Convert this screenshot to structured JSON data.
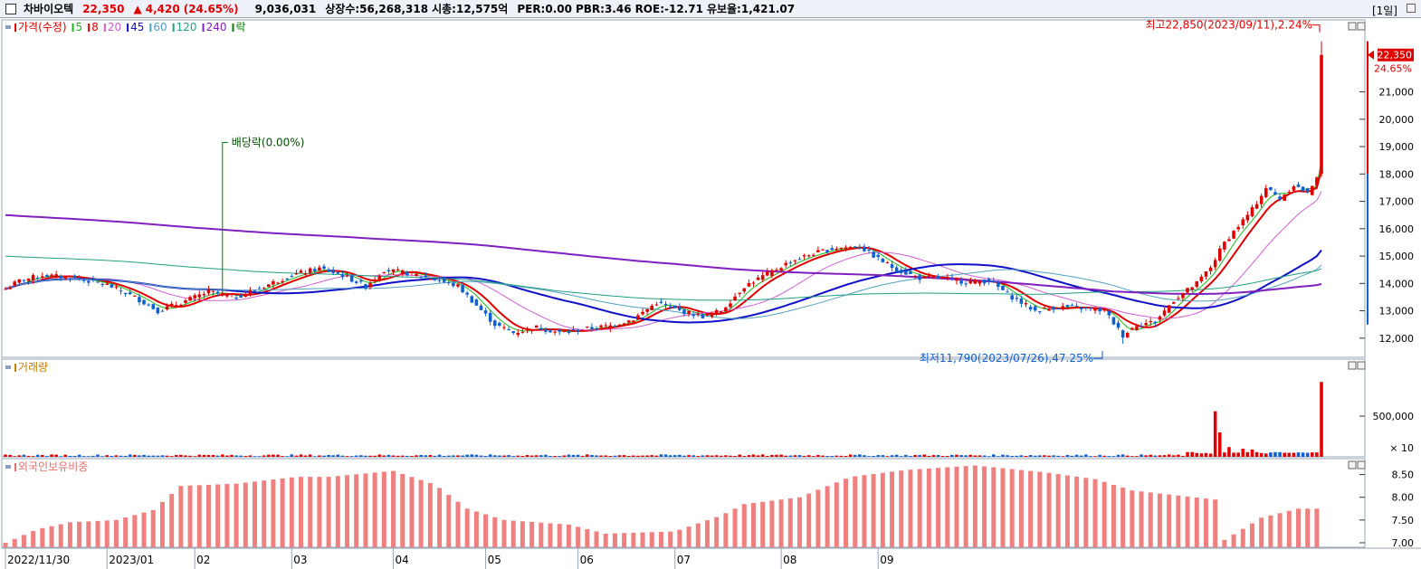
{
  "header": {
    "stock_name": "차바이오텍",
    "price": "22,350",
    "change_arrow": "▲",
    "change": "4,420",
    "change_pct": "(24.65%)",
    "volume": "9,036,031",
    "listed": "상장수:56,268,318",
    "mktcap": "시총:12,575억",
    "per": "PER:0.00",
    "pbr": "PBR:3.46",
    "roe": "ROE:-12.71",
    "float": "유보율:1,421.07",
    "period": "[1일]",
    "colors": {
      "up": "#e00000",
      "down": "#1060d0",
      "name": "#000000"
    }
  },
  "legend": {
    "main_items": [
      {
        "text": "가격(수정)",
        "color": "#e00000"
      },
      {
        "text": "5",
        "color": "#18b818"
      },
      {
        "text": "8",
        "color": "#e00000"
      },
      {
        "text": "20",
        "color": "#d060d0"
      },
      {
        "text": "45",
        "color": "#1010c8"
      },
      {
        "text": "60",
        "color": "#50a0c0"
      },
      {
        "text": "120",
        "color": "#20a080"
      },
      {
        "text": "240",
        "color": "#8020c0"
      },
      {
        "text": "락",
        "color": "#008000"
      }
    ],
    "volume": "거래량",
    "foreign": "외국인보유비중"
  },
  "annotations": {
    "high": "최고22,850(2023/09/11),2.24%",
    "low": "최저11,790(2023/07/26),47.25%",
    "dividend": "배당락(0.00%)",
    "current_price": "22,350",
    "current_pct": "24.65%",
    "volume_unit": "× 10"
  },
  "chart_data": {
    "type": "candlestick",
    "x_labels": [
      "2022/11/30",
      "2023/01",
      "02",
      "03",
      "04",
      "05",
      "06",
      "07",
      "08",
      "09"
    ],
    "price_axis": {
      "ticks": [
        12000,
        13000,
        14000,
        15000,
        16000,
        17000,
        18000,
        19000,
        20000,
        21000
      ],
      "ylim": [
        11300,
        23300
      ]
    },
    "volume_axis": {
      "ticks": [
        500000
      ],
      "unit": "× 10"
    },
    "foreign_axis": {
      "ticks": [
        7.0,
        7.5,
        8.0,
        8.5
      ],
      "ylim": [
        6.9,
        8.85
      ]
    },
    "anchors": [
      [
        0,
        13800
      ],
      [
        3,
        14100
      ],
      [
        8,
        14300
      ],
      [
        15,
        14200
      ],
      [
        22,
        13950
      ],
      [
        28,
        13500
      ],
      [
        33,
        13000
      ],
      [
        38,
        13300
      ],
      [
        44,
        13700
      ],
      [
        50,
        13500
      ],
      [
        56,
        13900
      ],
      [
        62,
        14300
      ],
      [
        68,
        14550
      ],
      [
        73,
        14300
      ],
      [
        78,
        13900
      ],
      [
        82,
        14500
      ],
      [
        88,
        14350
      ],
      [
        93,
        14150
      ],
      [
        98,
        13900
      ],
      [
        102,
        13200
      ],
      [
        106,
        12500
      ],
      [
        110,
        12200
      ],
      [
        115,
        12400
      ],
      [
        120,
        12200
      ],
      [
        126,
        12350
      ],
      [
        131,
        12450
      ],
      [
        136,
        12700
      ],
      [
        141,
        13300
      ],
      [
        146,
        13000
      ],
      [
        151,
        12800
      ],
      [
        155,
        13000
      ],
      [
        160,
        13900
      ],
      [
        165,
        14350
      ],
      [
        170,
        14800
      ],
      [
        175,
        15100
      ],
      [
        180,
        15300
      ],
      [
        185,
        15350
      ],
      [
        189,
        14900
      ],
      [
        193,
        14500
      ],
      [
        198,
        14200
      ],
      [
        203,
        14200
      ],
      [
        208,
        14050
      ],
      [
        213,
        14100
      ],
      [
        218,
        13500
      ],
      [
        223,
        13000
      ],
      [
        228,
        13150
      ],
      [
        233,
        13100
      ],
      [
        238,
        13000
      ],
      [
        242,
        12100
      ],
      [
        245,
        12500
      ],
      [
        249,
        12600
      ],
      [
        253,
        13400
      ],
      [
        258,
        14000
      ],
      [
        261,
        14600
      ],
      [
        264,
        15500
      ],
      [
        267,
        16100
      ],
      [
        270,
        16700
      ],
      [
        273,
        17500
      ],
      [
        276,
        17100
      ],
      [
        279,
        17600
      ],
      [
        282,
        17300
      ],
      [
        284,
        17930
      ],
      [
        285,
        22350
      ]
    ],
    "candles_summary": {
      "last_open": 18000,
      "last_close": 22350,
      "high": 22850,
      "low": 11790
    },
    "volume_spikes": [
      {
        "day": 262,
        "value": 560000
      },
      {
        "day": 263,
        "value": 300000
      },
      {
        "day": 265,
        "value": 120000
      },
      {
        "day": 268,
        "value": 100000
      },
      {
        "day": 270,
        "value": 90000
      },
      {
        "day": 285,
        "value": 920000
      }
    ],
    "foreign_anchors": [
      [
        0,
        7.0
      ],
      [
        7,
        7.3
      ],
      [
        14,
        7.45
      ],
      [
        24,
        7.5
      ],
      [
        32,
        7.72
      ],
      [
        38,
        8.25
      ],
      [
        50,
        8.3
      ],
      [
        63,
        8.45
      ],
      [
        70,
        8.45
      ],
      [
        84,
        8.58
      ],
      [
        93,
        8.28
      ],
      [
        100,
        7.75
      ],
      [
        108,
        7.5
      ],
      [
        122,
        7.4
      ],
      [
        130,
        7.2
      ],
      [
        145,
        7.25
      ],
      [
        155,
        7.6
      ],
      [
        160,
        7.85
      ],
      [
        172,
        8.0
      ],
      [
        183,
        8.45
      ],
      [
        195,
        8.6
      ],
      [
        210,
        8.7
      ],
      [
        225,
        8.55
      ],
      [
        236,
        8.4
      ],
      [
        244,
        8.15
      ],
      [
        262,
        7.95
      ],
      [
        263,
        7.0
      ],
      [
        272,
        7.55
      ],
      [
        280,
        7.75
      ],
      [
        285,
        7.75
      ]
    ],
    "ma_periods": [
      5,
      8,
      20,
      45,
      60,
      120,
      240
    ]
  }
}
